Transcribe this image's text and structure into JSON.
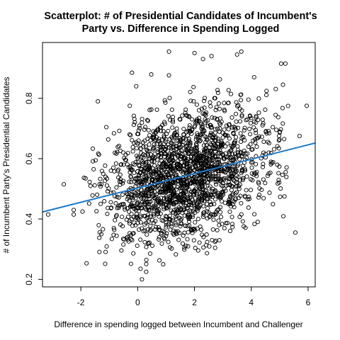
{
  "chart_data": {
    "type": "scatter",
    "title": "Scatterplot: # of Presidential Candidates of Incumbent's Party vs. Difference in Spending Logged",
    "title_lines": [
      "Scatterplot: # of Presidential Candidates of Incumbent's",
      "Party vs. Difference in Spending Logged"
    ],
    "xlabel": "Difference in spending logged between Incumbent and Challenger",
    "ylabel": "# of Incumbent Party's Presidential Candidates",
    "xlim": [
      -3.35,
      6.25
    ],
    "ylim": [
      0.175,
      0.985
    ],
    "xticks": [
      "-2",
      "0",
      "2",
      "4",
      "6"
    ],
    "yticks": [
      "0.2",
      "0.4",
      "0.6",
      "0.8"
    ],
    "grid": false,
    "legend": "none",
    "marker": "open-circle",
    "point_color": "#000000",
    "fit_line": {
      "color": "#1f78c8",
      "intercept": 0.503,
      "slope": 0.0238
    },
    "cluster": {
      "x_center": 1.7,
      "x_spread": 1.45,
      "y_spread": 0.105,
      "n_points": 2000
    },
    "visible_points": [
      {
        "x": 1.1,
        "y": 0.955
      },
      {
        "x": 2.0,
        "y": 0.95
      },
      {
        "x": 3.65,
        "y": 0.955
      },
      {
        "x": 3.5,
        "y": 0.945
      },
      {
        "x": 2.6,
        "y": 0.94
      },
      {
        "x": 5.05,
        "y": 0.915
      },
      {
        "x": 5.2,
        "y": 0.915
      },
      {
        "x": -0.2,
        "y": 0.885
      },
      {
        "x": -1.4,
        "y": 0.79
      },
      {
        "x": 5.95,
        "y": 0.775
      },
      {
        "x": -0.05,
        "y": 0.84
      },
      {
        "x": -3.15,
        "y": 0.415
      },
      {
        "x": -2.6,
        "y": 0.515
      },
      {
        "x": -2.25,
        "y": 0.43
      },
      {
        "x": -2.25,
        "y": 0.415
      },
      {
        "x": -1.55,
        "y": 0.565
      },
      {
        "x": 0.15,
        "y": 0.2
      },
      {
        "x": 0.3,
        "y": 0.225
      },
      {
        "x": 0.1,
        "y": 0.235
      },
      {
        "x": 5.7,
        "y": 0.675
      },
      {
        "x": 5.55,
        "y": 0.355
      },
      {
        "x": 4.1,
        "y": 0.87
      },
      {
        "x": 2.3,
        "y": 0.93
      },
      {
        "x": 0.9,
        "y": 0.25
      }
    ]
  }
}
